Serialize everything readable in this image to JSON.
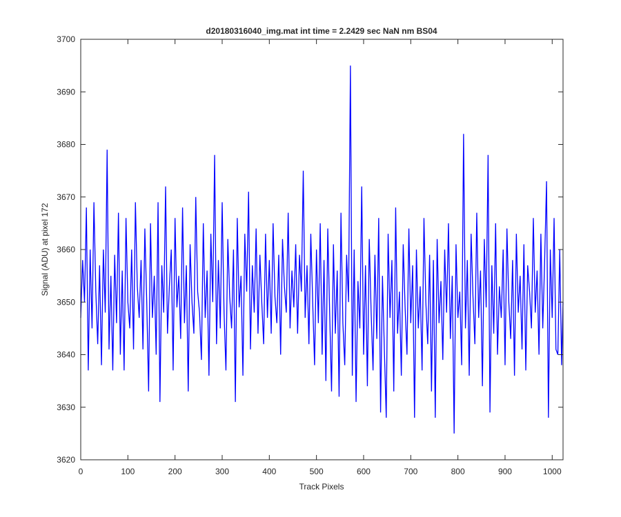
{
  "chart_data": {
    "type": "line",
    "title": "d20180316040_img.mat int time = 2.2429 sec  NaN nm BS04",
    "x_label": "Track Pixels",
    "y_label": "Signal (ADU) at pixel 172",
    "xlim": [
      0,
      1023
    ],
    "ylim": [
      3620,
      3700
    ],
    "xticks": [
      0,
      100,
      200,
      300,
      400,
      500,
      600,
      700,
      800,
      900,
      1000
    ],
    "yticks": [
      3620,
      3630,
      3640,
      3650,
      3660,
      3670,
      3680,
      3690,
      3700
    ],
    "x": [
      0,
      4,
      8,
      12,
      16,
      20,
      24,
      28,
      32,
      36,
      40,
      44,
      48,
      52,
      56,
      60,
      64,
      68,
      72,
      76,
      80,
      84,
      88,
      92,
      96,
      100,
      104,
      108,
      112,
      116,
      120,
      124,
      128,
      132,
      136,
      140,
      144,
      148,
      152,
      156,
      160,
      164,
      168,
      172,
      176,
      180,
      184,
      188,
      192,
      196,
      200,
      204,
      208,
      212,
      216,
      220,
      224,
      228,
      232,
      236,
      240,
      244,
      248,
      252,
      256,
      260,
      264,
      268,
      272,
      276,
      280,
      284,
      288,
      292,
      296,
      300,
      304,
      308,
      312,
      316,
      320,
      324,
      328,
      332,
      336,
      340,
      344,
      348,
      352,
      356,
      360,
      364,
      368,
      372,
      376,
      380,
      384,
      388,
      392,
      396,
      400,
      404,
      408,
      412,
      416,
      420,
      424,
      428,
      432,
      436,
      440,
      444,
      448,
      452,
      456,
      460,
      464,
      468,
      472,
      476,
      480,
      484,
      488,
      492,
      496,
      500,
      504,
      508,
      512,
      516,
      520,
      524,
      528,
      532,
      536,
      540,
      544,
      548,
      552,
      556,
      560,
      564,
      568,
      572,
      576,
      580,
      584,
      588,
      592,
      596,
      600,
      604,
      608,
      612,
      616,
      620,
      624,
      628,
      632,
      636,
      640,
      644,
      648,
      652,
      656,
      660,
      664,
      668,
      672,
      676,
      680,
      684,
      688,
      692,
      696,
      700,
      704,
      708,
      712,
      716,
      720,
      724,
      728,
      732,
      736,
      740,
      744,
      748,
      752,
      756,
      760,
      764,
      768,
      772,
      776,
      780,
      784,
      788,
      792,
      796,
      800,
      804,
      808,
      812,
      816,
      820,
      824,
      828,
      832,
      836,
      840,
      844,
      848,
      852,
      856,
      860,
      864,
      868,
      872,
      876,
      880,
      884,
      888,
      892,
      896,
      900,
      904,
      908,
      912,
      916,
      920,
      924,
      928,
      932,
      936,
      940,
      944,
      948,
      952,
      956,
      960,
      964,
      968,
      972,
      976,
      980,
      984,
      988,
      992,
      996,
      1000,
      1004,
      1008,
      1012,
      1016,
      1020,
      1023
    ],
    "series": [
      {
        "name": "signal",
        "color": "#0000ff",
        "values": [
          3647,
          3658,
          3650,
          3668,
          3637,
          3660,
          3645,
          3669,
          3652,
          3642,
          3657,
          3638,
          3660,
          3648,
          3679,
          3641,
          3655,
          3637,
          3659,
          3646,
          3667,
          3640,
          3656,
          3637,
          3666,
          3650,
          3645,
          3660,
          3641,
          3669,
          3653,
          3647,
          3658,
          3641,
          3664,
          3650,
          3633,
          3665,
          3647,
          3655,
          3640,
          3669,
          3631,
          3657,
          3648,
          3672,
          3644,
          3653,
          3660,
          3637,
          3666,
          3649,
          3655,
          3643,
          3668,
          3646,
          3657,
          3633,
          3661,
          3650,
          3644,
          3670,
          3652,
          3648,
          3639,
          3665,
          3647,
          3656,
          3636,
          3663,
          3650,
          3678,
          3642,
          3658,
          3645,
          3669,
          3648,
          3637,
          3662,
          3651,
          3645,
          3660,
          3631,
          3666,
          3649,
          3655,
          3636,
          3663,
          3652,
          3671,
          3641,
          3657,
          3648,
          3664,
          3644,
          3659,
          3650,
          3642,
          3663,
          3647,
          3658,
          3644,
          3665,
          3651,
          3646,
          3659,
          3640,
          3662,
          3653,
          3648,
          3667,
          3645,
          3656,
          3649,
          3661,
          3644,
          3659,
          3652,
          3675,
          3647,
          3657,
          3642,
          3663,
          3650,
          3638,
          3660,
          3646,
          3665,
          3640,
          3658,
          3635,
          3664,
          3648,
          3633,
          3661,
          3644,
          3656,
          3632,
          3667,
          3646,
          3638,
          3659,
          3650,
          3695,
          3636,
          3660,
          3631,
          3654,
          3645,
          3672,
          3640,
          3657,
          3634,
          3662,
          3648,
          3637,
          3659,
          3643,
          3666,
          3629,
          3655,
          3641,
          3628,
          3663,
          3647,
          3658,
          3633,
          3668,
          3644,
          3652,
          3636,
          3661,
          3649,
          3640,
          3664,
          3646,
          3657,
          3628,
          3660,
          3645,
          3653,
          3637,
          3666,
          3650,
          3642,
          3659,
          3633,
          3658,
          3628,
          3662,
          3646,
          3654,
          3639,
          3660,
          3648,
          3665,
          3643,
          3655,
          3625,
          3661,
          3647,
          3652,
          3638,
          3682,
          3645,
          3658,
          3636,
          3663,
          3651,
          3642,
          3667,
          3647,
          3656,
          3634,
          3662,
          3649,
          3678,
          3629,
          3657,
          3644,
          3665,
          3640,
          3653,
          3647,
          3660,
          3638,
          3664,
          3650,
          3643,
          3658,
          3636,
          3663,
          3648,
          3655,
          3641,
          3661,
          3637,
          3657,
          3652,
          3645,
          3666,
          3648,
          3656,
          3640,
          3663,
          3645,
          3658,
          3673,
          3628,
          3660,
          3647,
          3666,
          3641,
          3640,
          3660,
          3638,
          3650
        ]
      }
    ]
  }
}
